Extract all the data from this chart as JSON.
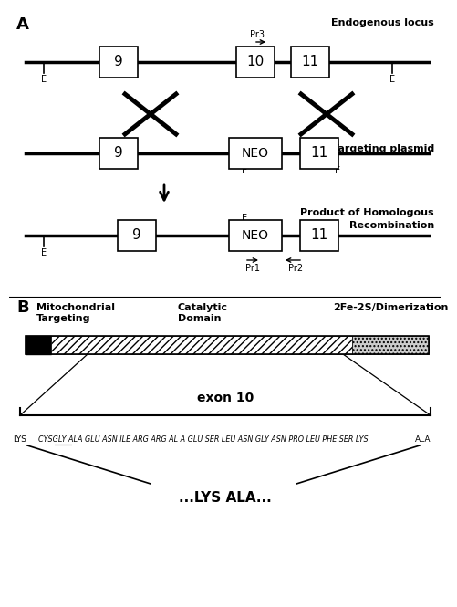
{
  "bg_color": "#ffffff",
  "panel_a_label": "A",
  "panel_b_label": "B",
  "endogenous_label": "Endogenous locus",
  "targeting_label": "Targeting plasmid",
  "recombination_label1": "Product of Homologous",
  "recombination_label2": "Recombination",
  "mito_label": "Mitochondrial\nTargeting",
  "catalytic_label": "Catalytic\nDomain",
  "fe_label": "2Fe-2S/Dimerization",
  "exon10_label": "exon 10",
  "lys_ala_label": "...LYS ALA...",
  "line_color": "#000000"
}
